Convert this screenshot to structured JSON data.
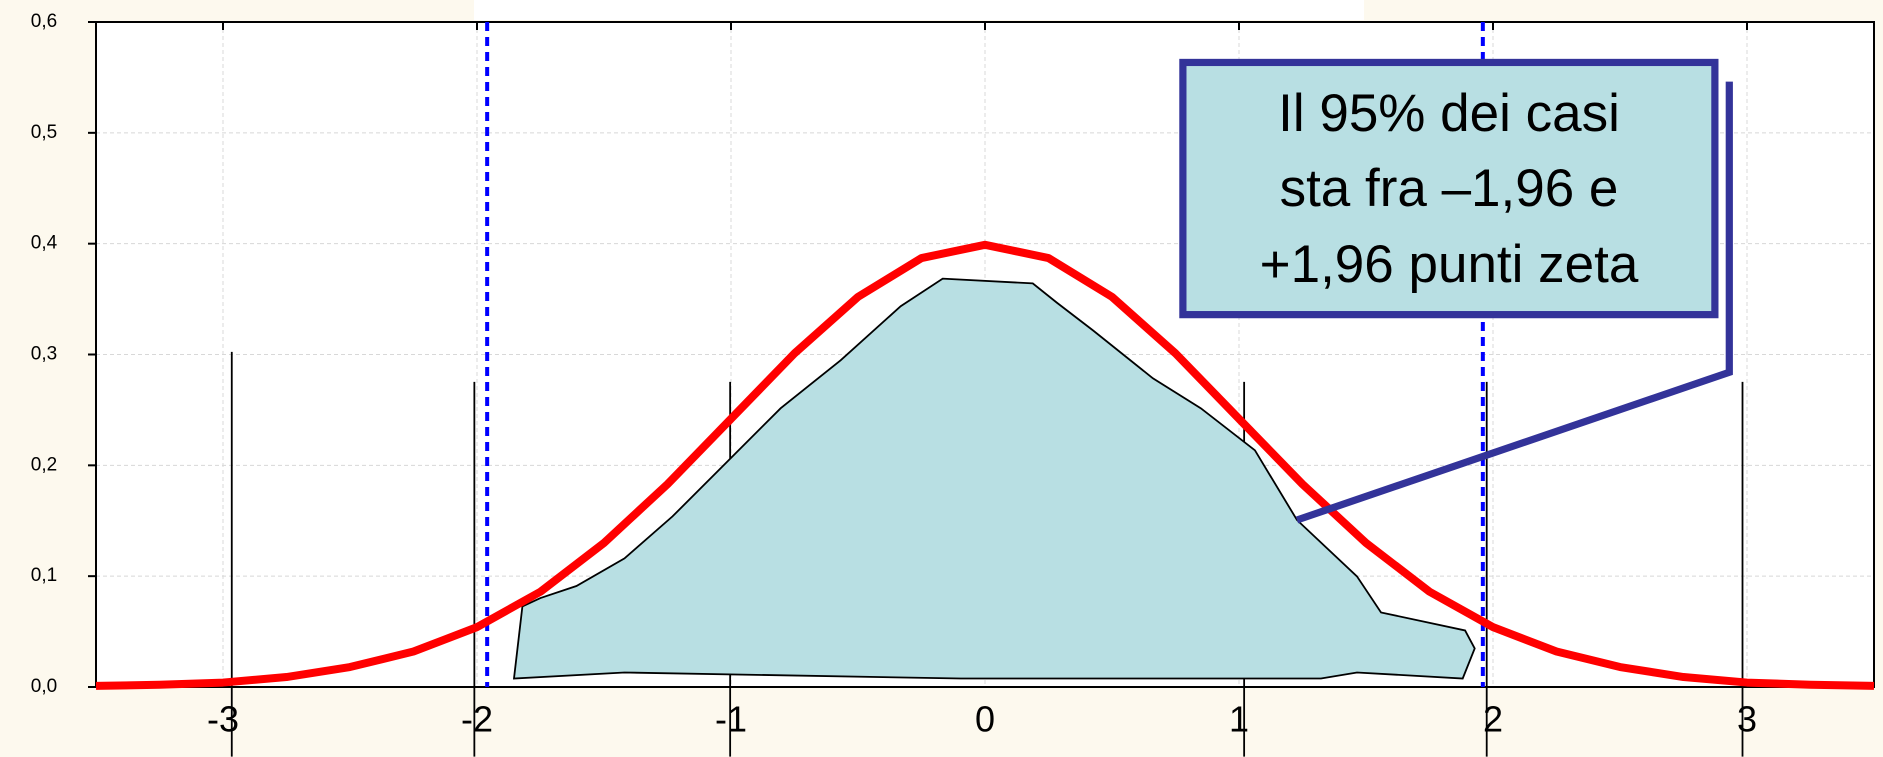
{
  "chart_data": {
    "type": "line",
    "x": [
      -3.5,
      -3.25,
      -3,
      -2.75,
      -2.5,
      -2.25,
      -2,
      -1.75,
      -1.5,
      -1.25,
      -1,
      -0.75,
      -0.5,
      -0.25,
      0,
      0.25,
      0.5,
      0.75,
      1,
      1.25,
      1.5,
      1.75,
      2,
      2.25,
      2.5,
      2.75,
      3,
      3.25,
      3.5
    ],
    "series": [
      {
        "color": "#ff0000",
        "values": [
          0.001,
          0.002,
          0.004,
          0.009,
          0.018,
          0.032,
          0.054,
          0.086,
          0.13,
          0.183,
          0.242,
          0.301,
          0.352,
          0.387,
          0.399,
          0.387,
          0.352,
          0.301,
          0.242,
          0.183,
          0.13,
          0.086,
          0.054,
          0.032,
          0.018,
          0.009,
          0.004,
          0.002,
          0.001
        ]
      }
    ],
    "xlim": [
      -3.5,
      3.5
    ],
    "xticks": [
      -3,
      -2,
      -1,
      0,
      1,
      2,
      3
    ],
    "ylim": [
      0,
      0.6
    ],
    "yticks": [
      {
        "value": 0,
        "label": "0,0"
      },
      {
        "value": 0.1,
        "label": "0,1"
      },
      {
        "value": 0.2,
        "label": "0,2"
      },
      {
        "value": 0.3,
        "label": "0,3"
      },
      {
        "value": 0.4,
        "label": "0,4"
      },
      {
        "value": 0.5,
        "label": "0,5"
      },
      {
        "value": 0.6,
        "label": "0,6"
      }
    ],
    "grid": true,
    "reference_lines": {
      "color": "#0000ff",
      "x": [
        -1.96,
        1.96
      ]
    },
    "annotation": [
      "Il 95% dei casi",
      "sta fra –1,96 e",
      "+1,96 punti zeta"
    ]
  }
}
